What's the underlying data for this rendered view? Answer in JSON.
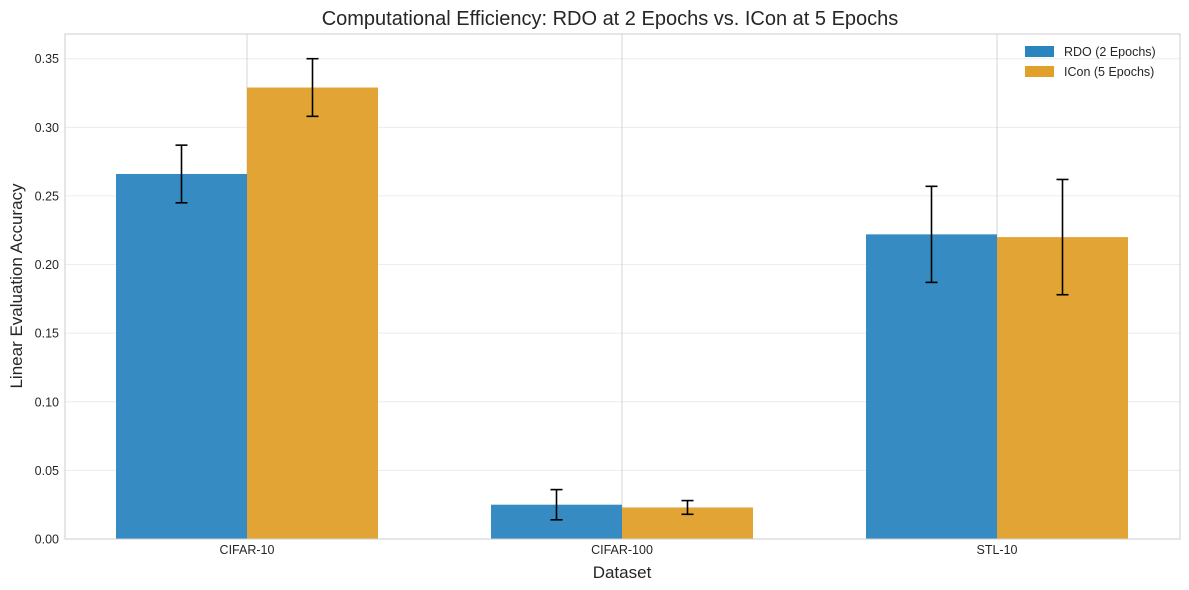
{
  "chart_data": {
    "type": "bar",
    "title": "Computational Efficiency: RDO at 2 Epochs vs. ICon at 5 Epochs",
    "xlabel": "Dataset",
    "ylabel": "Linear Evaluation Accuracy",
    "categories": [
      "CIFAR-10",
      "CIFAR-100",
      "STL-10"
    ],
    "ylim": [
      0,
      0.368
    ],
    "yticks": [
      0.0,
      0.05,
      0.1,
      0.15,
      0.2,
      0.25,
      0.3,
      0.35
    ],
    "ytick_labels": [
      "0.00",
      "0.05",
      "0.10",
      "0.15",
      "0.20",
      "0.25",
      "0.30",
      "0.35"
    ],
    "grid": true,
    "legend_position": "top-right",
    "series": [
      {
        "name": "RDO (2 Epochs)",
        "color": "#2a85bf",
        "values": [
          0.266,
          0.025,
          0.222
        ],
        "errors": [
          0.021,
          0.011,
          0.035
        ]
      },
      {
        "name": "ICon (5 Epochs)",
        "color": "#e0a02a",
        "values": [
          0.329,
          0.023,
          0.22
        ],
        "errors": [
          0.021,
          0.005,
          0.042
        ]
      }
    ]
  }
}
